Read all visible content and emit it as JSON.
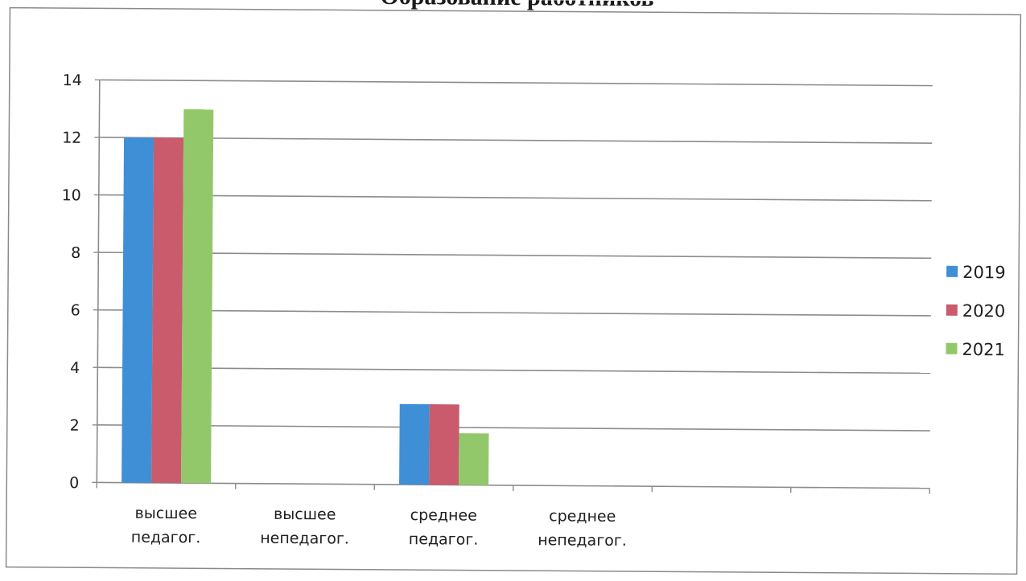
{
  "chart_data": {
    "type": "bar",
    "title": "Образование работников",
    "xlabel": "",
    "ylabel": "",
    "ylim": [
      0,
      14
    ],
    "yticks": [
      0,
      2,
      4,
      6,
      8,
      10,
      12,
      14
    ],
    "grid": true,
    "legend": "right",
    "categories": [
      [
        "высшее",
        "педагог."
      ],
      [
        "высшее",
        "непедагог."
      ],
      [
        "среднее",
        "педагог."
      ],
      [
        "среднее",
        "непедагог."
      ],
      [
        "",
        ""
      ],
      [
        "",
        ""
      ]
    ],
    "series": [
      {
        "name": "2019",
        "color": "#3f8fd6",
        "values": [
          12,
          0,
          2.8,
          0,
          0,
          0
        ]
      },
      {
        "name": "2020",
        "color": "#c95b6c",
        "values": [
          12,
          0,
          2.8,
          0,
          0,
          0
        ]
      },
      {
        "name": "2021",
        "color": "#92c86a",
        "values": [
          13,
          0,
          1.8,
          0,
          0,
          0
        ]
      }
    ]
  }
}
